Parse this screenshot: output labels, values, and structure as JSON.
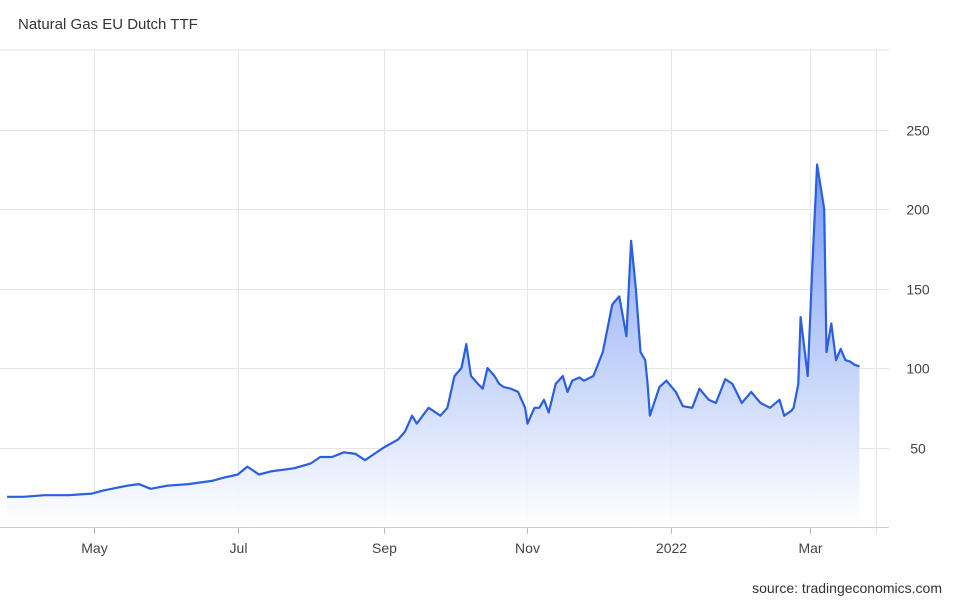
{
  "header": {
    "title": "Natural Gas EU Dutch TTF"
  },
  "footer": {
    "source": "source: tradingeconomics.com"
  },
  "colors": {
    "line": "#2a5fe0",
    "fill_top": "#6f93f2",
    "grid": "#e6e6e6"
  },
  "chart_data": {
    "type": "area",
    "title": "Natural Gas EU Dutch TTF",
    "x_tick_labels": [
      "May",
      "Jul",
      "Sep",
      "Nov",
      "2022",
      "Mar"
    ],
    "x_tick_dates": [
      "2021-05-01",
      "2021-07-01",
      "2021-09-01",
      "2021-11-01",
      "2022-01-01",
      "2022-03-01"
    ],
    "y_ticks": [
      50,
      100,
      150,
      200,
      250
    ],
    "y_range": [
      0,
      300
    ],
    "grid": true,
    "series": [
      {
        "x": [
          "2021-03-25",
          "2021-04-01",
          "2021-04-10",
          "2021-04-20",
          "2021-04-30",
          "2021-05-05",
          "2021-05-15",
          "2021-05-20",
          "2021-05-25",
          "2021-06-01",
          "2021-06-10",
          "2021-06-20",
          "2021-06-25",
          "2021-07-01",
          "2021-07-05",
          "2021-07-10",
          "2021-07-15",
          "2021-07-20",
          "2021-07-25",
          "2021-08-01",
          "2021-08-05",
          "2021-08-10",
          "2021-08-15",
          "2021-08-20",
          "2021-08-24",
          "2021-08-27",
          "2021-09-01",
          "2021-09-07",
          "2021-09-10",
          "2021-09-13",
          "2021-09-15",
          "2021-09-20",
          "2021-09-25",
          "2021-09-28",
          "2021-10-01",
          "2021-10-04",
          "2021-10-06",
          "2021-10-08",
          "2021-10-11",
          "2021-10-13",
          "2021-10-15",
          "2021-10-18",
          "2021-10-20",
          "2021-10-22",
          "2021-10-25",
          "2021-10-28",
          "2021-10-31",
          "2021-11-01",
          "2021-11-04",
          "2021-11-06",
          "2021-11-08",
          "2021-11-10",
          "2021-11-13",
          "2021-11-16",
          "2021-11-18",
          "2021-11-20",
          "2021-11-23",
          "2021-11-25",
          "2021-11-29",
          "2021-12-03",
          "2021-12-07",
          "2021-12-10",
          "2021-12-13",
          "2021-12-15",
          "2021-12-17",
          "2021-12-19",
          "2021-12-21",
          "2021-12-22",
          "2021-12-23",
          "2021-12-27",
          "2021-12-30",
          "2022-01-03",
          "2022-01-06",
          "2022-01-10",
          "2022-01-13",
          "2022-01-17",
          "2022-01-20",
          "2022-01-24",
          "2022-01-27",
          "2022-01-31",
          "2022-02-04",
          "2022-02-08",
          "2022-02-12",
          "2022-02-16",
          "2022-02-18",
          "2022-02-21",
          "2022-02-22",
          "2022-02-24",
          "2022-02-25",
          "2022-02-28",
          "2022-03-02",
          "2022-03-04",
          "2022-03-07",
          "2022-03-08",
          "2022-03-10",
          "2022-03-12",
          "2022-03-14",
          "2022-03-16",
          "2022-03-18",
          "2022-03-20",
          "2022-03-22"
        ],
        "values": [
          19,
          19,
          20,
          20,
          21,
          23,
          26,
          27,
          24,
          26,
          27,
          29,
          31,
          33,
          38,
          33,
          35,
          36,
          37,
          40,
          44,
          44,
          47,
          46,
          42,
          45,
          50,
          55,
          60,
          70,
          65,
          75,
          70,
          75,
          95,
          100,
          115,
          95,
          90,
          87,
          100,
          95,
          90,
          88,
          87,
          85,
          75,
          65,
          75,
          75,
          80,
          72,
          90,
          95,
          85,
          92,
          94,
          92,
          95,
          110,
          140,
          145,
          120,
          180,
          150,
          110,
          105,
          90,
          70,
          88,
          92,
          85,
          76,
          75,
          87,
          80,
          78,
          93,
          90,
          78,
          85,
          78,
          75,
          80,
          70,
          73,
          75,
          90,
          132,
          95,
          165,
          228,
          200,
          110,
          128,
          105,
          112,
          105,
          104,
          102,
          101
        ]
      }
    ]
  }
}
